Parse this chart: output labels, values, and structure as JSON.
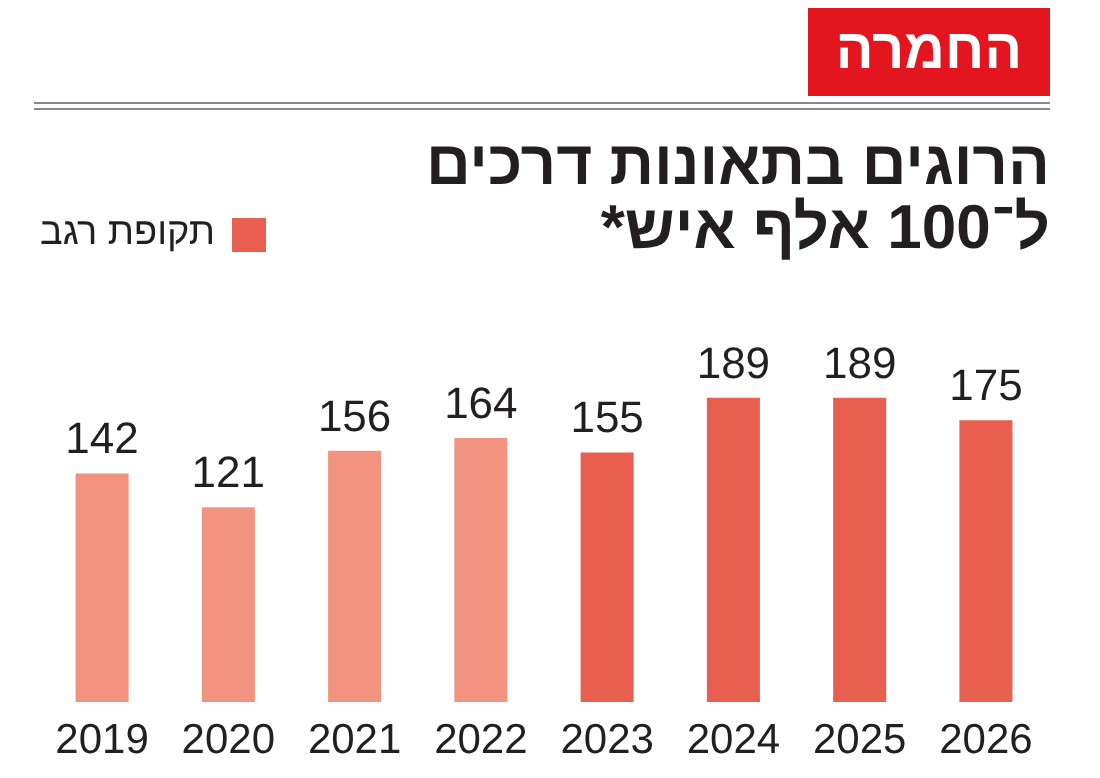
{
  "chart_data": {
    "type": "bar",
    "title": "הרוגים בתאונות דרכים ל־100 אלף איש*",
    "annotations": [
      "החמרה"
    ],
    "categories": [
      "2019",
      "2020",
      "2021",
      "2022",
      "2023",
      "2024",
      "2025",
      "2026"
    ],
    "series": [
      {
        "color": "#f2937f",
        "values": [
          142,
          121,
          156,
          164,
          null,
          null,
          null,
          null
        ]
      },
      {
        "name": "תקופת רגב",
        "color": "#e85f50",
        "values": [
          null,
          null,
          null,
          null,
          155,
          189,
          189,
          175
        ]
      }
    ],
    "data_labels": true,
    "legend": "top left"
  }
}
